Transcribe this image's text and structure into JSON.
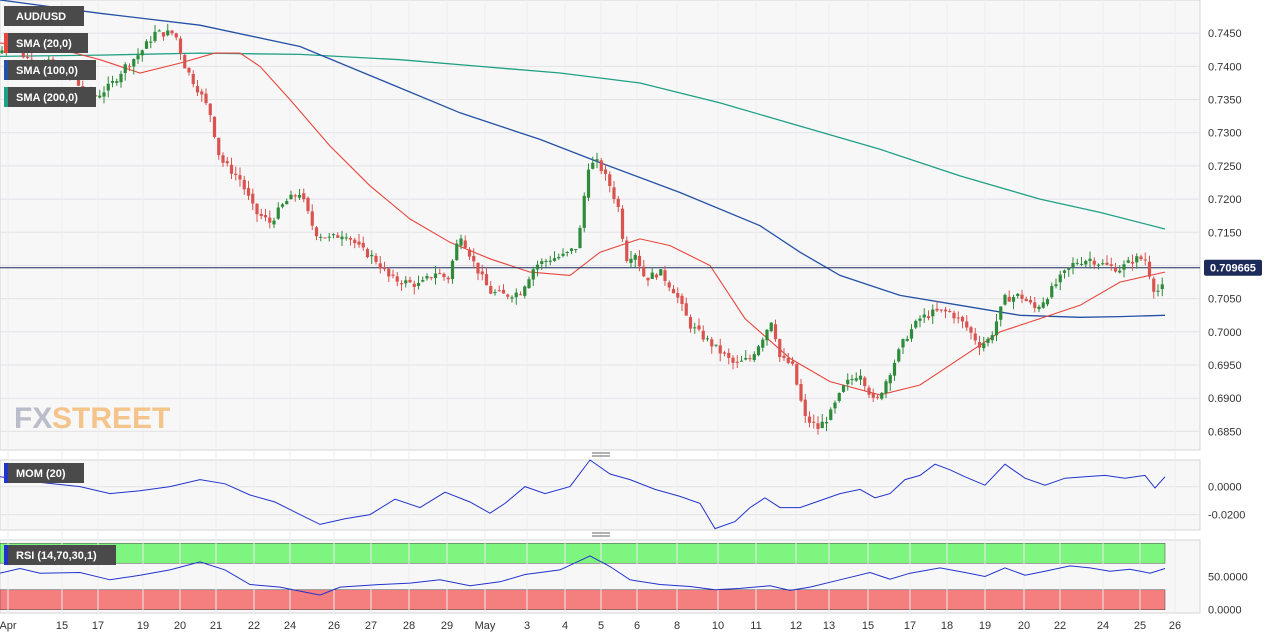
{
  "symbol": "AUD/USD",
  "watermark": {
    "fx": "FX",
    "street": "STREET"
  },
  "last_price_label": "0.709665",
  "colors": {
    "bull": "#2e8b3a",
    "bear": "#d9534f",
    "sma20": "#e8453c",
    "sma100": "#2450a6",
    "sma200": "#20a085",
    "price_line": "#1c2b5a",
    "mom": "#2233cc",
    "rsi": "#2233cc",
    "rsi_upper": "#7ef57e",
    "rsi_lower": "#f57e7e"
  },
  "x_ticks": [
    "Apr",
    "15",
    "17",
    "19",
    "20",
    "21",
    "22",
    "24",
    "26",
    "27",
    "28",
    "29",
    "May",
    "3",
    "4",
    "5",
    "6",
    "8",
    "10",
    "11",
    "12",
    "13",
    "15",
    "17",
    "18",
    "19",
    "20",
    "22",
    "24",
    "25",
    "26"
  ],
  "chart_data": [
    {
      "type": "candlestick",
      "title": "AUD/USD",
      "ylim": [
        0.6822,
        0.75
      ],
      "y_ticks": [
        "0.7450",
        "0.7400",
        "0.7350",
        "0.7300",
        "0.7250",
        "0.7200",
        "0.7150",
        "0.7100",
        "0.7050",
        "0.7000",
        "0.6950",
        "0.6900",
        "0.6850"
      ],
      "last_price": 0.709665,
      "close_path": [
        [
          0,
          0.742
        ],
        [
          12,
          0.7445
        ],
        [
          24,
          0.7415
        ],
        [
          36,
          0.7405
        ],
        [
          48,
          0.7405
        ],
        [
          60,
          0.7395
        ],
        [
          72,
          0.7385
        ],
        [
          84,
          0.736
        ],
        [
          96,
          0.7355
        ],
        [
          110,
          0.737
        ],
        [
          125,
          0.74
        ],
        [
          140,
          0.742
        ],
        [
          155,
          0.745
        ],
        [
          175,
          0.745
        ],
        [
          185,
          0.74
        ],
        [
          200,
          0.736
        ],
        [
          210,
          0.733
        ],
        [
          220,
          0.726
        ],
        [
          240,
          0.723
        ],
        [
          255,
          0.718
        ],
        [
          270,
          0.7165
        ],
        [
          285,
          0.7195
        ],
        [
          300,
          0.721
        ],
        [
          315,
          0.715
        ],
        [
          330,
          0.714
        ],
        [
          345,
          0.715
        ],
        [
          360,
          0.7125
        ],
        [
          375,
          0.711
        ],
        [
          390,
          0.708
        ],
        [
          405,
          0.7075
        ],
        [
          420,
          0.707
        ],
        [
          435,
          0.709
        ],
        [
          448,
          0.708
        ],
        [
          460,
          0.715
        ],
        [
          475,
          0.71
        ],
        [
          490,
          0.706
        ],
        [
          505,
          0.7055
        ],
        [
          520,
          0.706
        ],
        [
          535,
          0.71
        ],
        [
          550,
          0.711
        ],
        [
          565,
          0.7115
        ],
        [
          578,
          0.713
        ],
        [
          588,
          0.725
        ],
        [
          598,
          0.7255
        ],
        [
          610,
          0.722
        ],
        [
          620,
          0.718
        ],
        [
          625,
          0.711
        ],
        [
          635,
          0.712
        ],
        [
          645,
          0.708
        ],
        [
          660,
          0.709
        ],
        [
          675,
          0.706
        ],
        [
          690,
          0.701
        ],
        [
          705,
          0.699
        ],
        [
          720,
          0.697
        ],
        [
          735,
          0.695
        ],
        [
          750,
          0.696
        ],
        [
          762,
          0.699
        ],
        [
          772,
          0.702
        ],
        [
          780,
          0.696
        ],
        [
          792,
          0.695
        ],
        [
          805,
          0.687
        ],
        [
          818,
          0.6855
        ],
        [
          830,
          0.6875
        ],
        [
          845,
          0.692
        ],
        [
          860,
          0.694
        ],
        [
          875,
          0.689
        ],
        [
          890,
          0.694
        ],
        [
          905,
          0.699
        ],
        [
          920,
          0.702
        ],
        [
          935,
          0.703
        ],
        [
          950,
          0.703
        ],
        [
          965,
          0.701
        ],
        [
          980,
          0.698
        ],
        [
          990,
          0.699
        ],
        [
          1005,
          0.705
        ],
        [
          1020,
          0.7055
        ],
        [
          1035,
          0.7035
        ],
        [
          1045,
          0.705
        ],
        [
          1060,
          0.708
        ],
        [
          1075,
          0.7105
        ],
        [
          1090,
          0.711
        ],
        [
          1105,
          0.71
        ],
        [
          1120,
          0.7095
        ],
        [
          1135,
          0.711
        ],
        [
          1145,
          0.711
        ],
        [
          1155,
          0.706
        ],
        [
          1162,
          0.7065
        ],
        [
          1168,
          0.7097
        ]
      ],
      "series": [
        {
          "name": "SMA (20,0)",
          "points": [
            [
              0,
              0.7435
            ],
            [
              50,
              0.743
            ],
            [
              100,
              0.741
            ],
            [
              140,
              0.739
            ],
            [
              180,
              0.7405
            ],
            [
              215,
              0.742
            ],
            [
              240,
              0.742
            ],
            [
              260,
              0.74
            ],
            [
              290,
              0.735
            ],
            [
              330,
              0.728
            ],
            [
              370,
              0.722
            ],
            [
              410,
              0.717
            ],
            [
              450,
              0.7135
            ],
            [
              490,
              0.711
            ],
            [
              530,
              0.709
            ],
            [
              570,
              0.7085
            ],
            [
              600,
              0.712
            ],
            [
              640,
              0.714
            ],
            [
              670,
              0.713
            ],
            [
              710,
              0.71
            ],
            [
              745,
              0.702
            ],
            [
              790,
              0.696
            ],
            [
              830,
              0.6925
            ],
            [
              880,
              0.6905
            ],
            [
              920,
              0.692
            ],
            [
              960,
              0.696
            ],
            [
              1000,
              0.7
            ],
            [
              1040,
              0.702
            ],
            [
              1080,
              0.704
            ],
            [
              1120,
              0.7075
            ],
            [
              1150,
              0.7085
            ],
            [
              1165,
              0.709
            ]
          ]
        },
        {
          "name": "SMA (100,0)",
          "points": [
            [
              0,
              0.75
            ],
            [
              100,
              0.748
            ],
            [
              200,
              0.7462
            ],
            [
              300,
              0.743
            ],
            [
              380,
              0.738
            ],
            [
              460,
              0.733
            ],
            [
              540,
              0.729
            ],
            [
              600,
              0.7255
            ],
            [
              680,
              0.721
            ],
            [
              760,
              0.716
            ],
            [
              800,
              0.712
            ],
            [
              840,
              0.7085
            ],
            [
              900,
              0.7055
            ],
            [
              960,
              0.704
            ],
            [
              1020,
              0.7025
            ],
            [
              1080,
              0.7022
            ],
            [
              1120,
              0.7023
            ],
            [
              1165,
              0.7025
            ]
          ]
        },
        {
          "name": "SMA (200,0)",
          "points": [
            [
              0,
              0.7415
            ],
            [
              100,
              0.7417
            ],
            [
              200,
              0.742
            ],
            [
              300,
              0.7418
            ],
            [
              400,
              0.741
            ],
            [
              480,
              0.74
            ],
            [
              560,
              0.739
            ],
            [
              640,
              0.7375
            ],
            [
              720,
              0.7345
            ],
            [
              800,
              0.731
            ],
            [
              880,
              0.7275
            ],
            [
              960,
              0.7235
            ],
            [
              1040,
              0.72
            ],
            [
              1100,
              0.718
            ],
            [
              1165,
              0.7155
            ]
          ]
        }
      ]
    },
    {
      "type": "line",
      "title": "MOM (20)",
      "ylim": [
        -0.031,
        0.019
      ],
      "y_ticks": [
        "0.0000",
        "-0.0200"
      ],
      "series": [
        {
          "name": "MOM (20)",
          "points": [
            [
              0,
              0.007
            ],
            [
              40,
              0.003
            ],
            [
              80,
              0.0
            ],
            [
              110,
              -0.005
            ],
            [
              140,
              -0.003
            ],
            [
              170,
              0.0
            ],
            [
              200,
              0.005
            ],
            [
              225,
              0.002
            ],
            [
              250,
              -0.006
            ],
            [
              275,
              -0.011
            ],
            [
              300,
              -0.02
            ],
            [
              320,
              -0.027
            ],
            [
              345,
              -0.023
            ],
            [
              370,
              -0.02
            ],
            [
              395,
              -0.009
            ],
            [
              420,
              -0.015
            ],
            [
              445,
              -0.004
            ],
            [
              470,
              -0.011
            ],
            [
              490,
              -0.019
            ],
            [
              505,
              -0.012
            ],
            [
              525,
              0.0
            ],
            [
              545,
              -0.005
            ],
            [
              570,
              0.0
            ],
            [
              590,
              0.019
            ],
            [
              610,
              0.009
            ],
            [
              630,
              0.005
            ],
            [
              655,
              -0.002
            ],
            [
              680,
              -0.007
            ],
            [
              700,
              -0.012
            ],
            [
              715,
              -0.03
            ],
            [
              735,
              -0.025
            ],
            [
              750,
              -0.015
            ],
            [
              765,
              -0.008
            ],
            [
              780,
              -0.015
            ],
            [
              800,
              -0.015
            ],
            [
              820,
              -0.01
            ],
            [
              840,
              -0.005
            ],
            [
              860,
              -0.002
            ],
            [
              875,
              -0.008
            ],
            [
              890,
              -0.005
            ],
            [
              905,
              0.005
            ],
            [
              920,
              0.008
            ],
            [
              935,
              0.016
            ],
            [
              950,
              0.012
            ],
            [
              965,
              0.007
            ],
            [
              985,
              0.001
            ],
            [
              1005,
              0.016
            ],
            [
              1025,
              0.006
            ],
            [
              1045,
              0.001
            ],
            [
              1065,
              0.006
            ],
            [
              1085,
              0.007
            ],
            [
              1105,
              0.008
            ],
            [
              1125,
              0.006
            ],
            [
              1145,
              0.008
            ],
            [
              1155,
              -0.001
            ],
            [
              1165,
              0.007
            ]
          ]
        }
      ]
    },
    {
      "type": "line",
      "title": "RSI (14,70,30,1)",
      "ylim": [
        -5,
        105
      ],
      "y_ticks": [
        "50.0000",
        "0.0000"
      ],
      "bands": {
        "upper": [
          70,
          100
        ],
        "lower": [
          0,
          30
        ]
      },
      "series": [
        {
          "name": "RSI (14,70,30,1)",
          "points": [
            [
              0,
              55
            ],
            [
              20,
              62
            ],
            [
              40,
              55
            ],
            [
              80,
              56
            ],
            [
              110,
              45
            ],
            [
              140,
              52
            ],
            [
              170,
              60
            ],
            [
              200,
              72
            ],
            [
              225,
              60
            ],
            [
              250,
              38
            ],
            [
              280,
              34
            ],
            [
              300,
              28
            ],
            [
              320,
              22
            ],
            [
              340,
              34
            ],
            [
              380,
              38
            ],
            [
              410,
              40
            ],
            [
              440,
              45
            ],
            [
              470,
              36
            ],
            [
              500,
              42
            ],
            [
              525,
              53
            ],
            [
              560,
              60
            ],
            [
              590,
              81
            ],
            [
              610,
              65
            ],
            [
              630,
              45
            ],
            [
              660,
              38
            ],
            [
              690,
              35
            ],
            [
              715,
              30
            ],
            [
              740,
              32
            ],
            [
              770,
              36
            ],
            [
              790,
              29
            ],
            [
              810,
              34
            ],
            [
              840,
              45
            ],
            [
              870,
              56
            ],
            [
              890,
              46
            ],
            [
              910,
              55
            ],
            [
              940,
              63
            ],
            [
              965,
              56
            ],
            [
              985,
              50
            ],
            [
              1005,
              63
            ],
            [
              1025,
              52
            ],
            [
              1045,
              58
            ],
            [
              1070,
              66
            ],
            [
              1090,
              63
            ],
            [
              1110,
              58
            ],
            [
              1130,
              61
            ],
            [
              1150,
              55
            ],
            [
              1165,
              62
            ]
          ]
        }
      ]
    }
  ]
}
